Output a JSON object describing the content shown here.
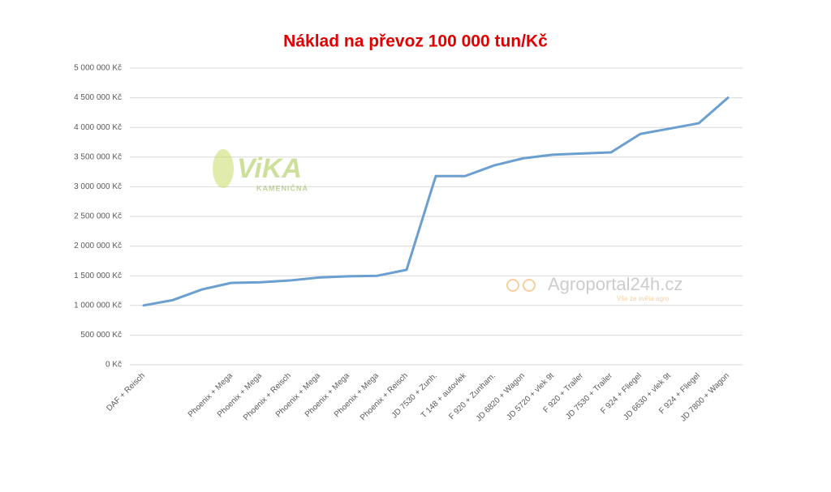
{
  "chart_data": {
    "type": "line",
    "title": "Náklad na převoz 100 000 tun/Kč",
    "categories": [
      "DAF + Reisch",
      null,
      null,
      "Phoenix + Mega",
      "Phoenix + Mega",
      "Phoenix + Reisch",
      "Phoenix + Mega",
      "Phoenix + Mega",
      "Phoenix + Mega",
      "Phoenix + Reisch",
      "JD 7530 + Zunh.",
      "T 148 + autovlek",
      "F 920 + Zunham.",
      "JD 6820 + Wagon",
      "JD 5720 + vlek 9t",
      "F 920 + Trailer",
      "JD 7530 + Trailer",
      "F 924 + Fliegel",
      "JD 6630 + vlek 9t",
      "F 924 + Fliegel",
      "JD 7800 + Wagon"
    ],
    "series": [
      {
        "name": "Náklad",
        "color": "#6a9fcf",
        "values": [
          1000000,
          1090000,
          1270000,
          1380000,
          1390000,
          1420000,
          1470000,
          1490000,
          1500000,
          1600000,
          3180000,
          3180000,
          3360000,
          3480000,
          3540000,
          3560000,
          3580000,
          3890000,
          3980000,
          4070000,
          4500000
        ]
      }
    ],
    "ylim": [
      0,
      5000000
    ],
    "yticks": [
      {
        "value": 0,
        "label": "0 Kč"
      },
      {
        "value": 500000,
        "label": "500 000 Kč"
      },
      {
        "value": 1000000,
        "label": "1 000 000 Kč"
      },
      {
        "value": 1500000,
        "label": "1 500 000 Kč"
      },
      {
        "value": 2000000,
        "label": "2 000 000 Kč"
      },
      {
        "value": 2500000,
        "label": "2 500 000 Kč"
      },
      {
        "value": 3000000,
        "label": "3 000 000 Kč"
      },
      {
        "value": 3500000,
        "label": "3 500 000 Kč"
      },
      {
        "value": 4000000,
        "label": "4 000 000 Kč"
      },
      {
        "value": 4500000,
        "label": "4 500 000 Kč"
      },
      {
        "value": 5000000,
        "label": "5 000 000 Kč"
      }
    ],
    "grid": true,
    "annotations": [
      "ViKA",
      "KAMENIČNÁ",
      "Agroportal24h.cz",
      "Vše ze světa agro"
    ]
  }
}
